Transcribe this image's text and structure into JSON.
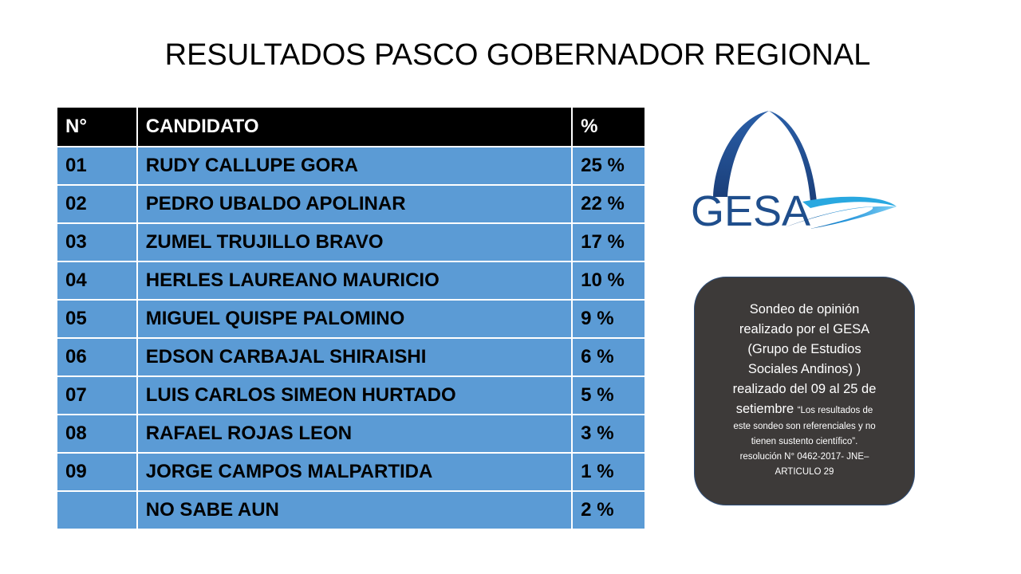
{
  "title": "RESULTADOS PASCO GOBERNADOR REGIONAL",
  "table": {
    "headers": [
      "N°",
      " CANDIDATO",
      "%"
    ],
    "rows": [
      [
        "01",
        "RUDY CALLUPE GORA",
        "25 %"
      ],
      [
        "02",
        "PEDRO UBALDO APOLINAR",
        "22 %"
      ],
      [
        "03",
        "ZUMEL TRUJILLO BRAVO",
        "17 %"
      ],
      [
        "04",
        "HERLES LAUREANO MAURICIO",
        "10 %"
      ],
      [
        "05",
        "MIGUEL QUISPE PALOMINO",
        "9 %"
      ],
      [
        "06",
        "EDSON CARBAJAL SHIRAISHI",
        "6 %"
      ],
      [
        "07",
        "LUIS CARLOS SIMEON HURTADO",
        "5 %"
      ],
      [
        "08",
        "RAFAEL ROJAS LEON",
        "3 %"
      ],
      [
        "09",
        "JORGE CAMPOS  MALPARTIDA",
        "1 %"
      ],
      [
        "",
        "NO SABE AUN",
        "2 %"
      ]
    ]
  },
  "logo": {
    "text": "GESA",
    "icon": "gesa-logo"
  },
  "note": {
    "line1": "Sondeo de opinión",
    "line2": "realizado por el GESA",
    "line3": "(Grupo de Estudios",
    "line4": "Sociales Andinos) )",
    "line5": "realizado del  09 al 25 de",
    "line6": "setiembre",
    "small1": "“Los resultados de",
    "small2": "este sondeo son referenciales y no",
    "small3": "tienen sustento científico”.",
    "small4": "resolución N° 0462-2017- JNE–",
    "small5": "ARTICULO 29"
  },
  "colors": {
    "header_bg": "#000000",
    "row_bg": "#5b9bd5",
    "note_bg": "#3d3a39",
    "logo_blue": "#1f4e8c",
    "logo_cyan": "#29a8e0"
  }
}
